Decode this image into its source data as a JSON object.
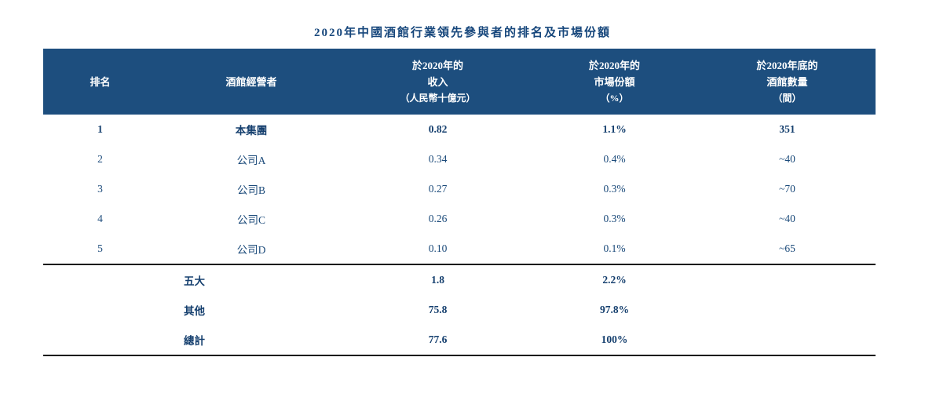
{
  "title": "2020年中國酒館行業領先參與者的排名及市場份額",
  "colors": {
    "header_bg": "#1d4e7e",
    "body_text": "#1b4a7a",
    "title_text": "#17477c",
    "rule": "#111111"
  },
  "table": {
    "headers": {
      "rank": "排名",
      "operator": "酒館經營者",
      "revenue": [
        "於2020年的",
        "收入",
        "（人民幣十億元）"
      ],
      "share": [
        "於2020年的",
        "市場份額",
        "（%）"
      ],
      "count": [
        "於2020年底的",
        "酒館數量",
        "（間）"
      ]
    },
    "rows": [
      {
        "rank": "1",
        "operator": "本集團",
        "revenue": "0.82",
        "share": "1.1%",
        "count": "351"
      },
      {
        "rank": "2",
        "operator": "公司A",
        "revenue": "0.34",
        "share": "0.4%",
        "count": "~40"
      },
      {
        "rank": "3",
        "operator": "公司B",
        "revenue": "0.27",
        "share": "0.3%",
        "count": "~70"
      },
      {
        "rank": "4",
        "operator": "公司C",
        "revenue": "0.26",
        "share": "0.3%",
        "count": "~40"
      },
      {
        "rank": "5",
        "operator": "公司D",
        "revenue": "0.10",
        "share": "0.1%",
        "count": "~65"
      }
    ],
    "summary": [
      {
        "label": "五大",
        "revenue": "1.8",
        "share": "2.2%",
        "count": ""
      },
      {
        "label": "其他",
        "revenue": "75.8",
        "share": "97.8%",
        "count": ""
      },
      {
        "label": "總計",
        "revenue": "77.6",
        "share": "100%",
        "count": ""
      }
    ]
  }
}
